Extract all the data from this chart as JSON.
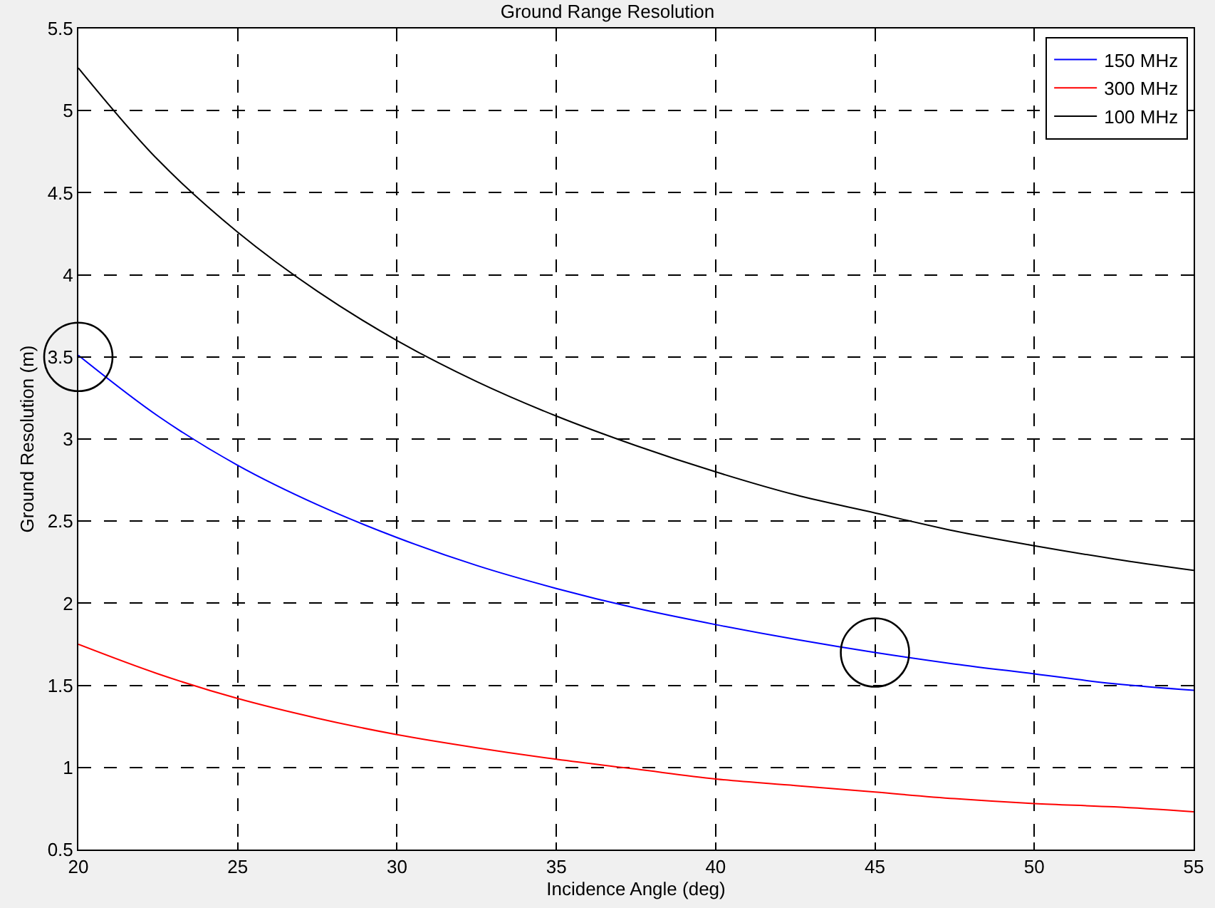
{
  "chart_data": {
    "type": "line",
    "title": "Ground Range Resolution",
    "xlabel": "Incidence Angle (deg)",
    "ylabel": "Ground Resolution (m)",
    "x": [
      20,
      22.5,
      25,
      27.5,
      30,
      32.5,
      35,
      37.5,
      40,
      42.5,
      45,
      47.5,
      50,
      52.5,
      55
    ],
    "series": [
      {
        "name": "150 MHz",
        "color": "#0000ff",
        "values": [
          3.51,
          3.14,
          2.84,
          2.6,
          2.4,
          2.23,
          2.09,
          1.97,
          1.87,
          1.78,
          1.7,
          1.63,
          1.57,
          1.51,
          1.47
        ]
      },
      {
        "name": "300 MHz",
        "color": "#ff0000",
        "values": [
          1.75,
          1.57,
          1.42,
          1.3,
          1.2,
          1.12,
          1.05,
          0.99,
          0.93,
          0.89,
          0.85,
          0.81,
          0.78,
          0.76,
          0.73
        ]
      },
      {
        "name": "100 MHz",
        "color": "#000000",
        "values": [
          5.26,
          4.7,
          4.26,
          3.9,
          3.6,
          3.35,
          3.14,
          2.96,
          2.8,
          2.66,
          2.55,
          2.44,
          2.35,
          2.27,
          2.2
        ]
      },
      {
        "type": "scatter",
        "marker": "circle",
        "color": "#000000",
        "x": [
          20,
          45
        ],
        "values": [
          3.5,
          1.7
        ]
      }
    ],
    "xlim": [
      20,
      55
    ],
    "xticks": [
      20,
      25,
      30,
      35,
      40,
      45,
      50,
      55
    ],
    "ylim": [
      0.5,
      5.5
    ],
    "yticks": [
      0.5,
      1,
      1.5,
      2,
      2.5,
      3,
      3.5,
      4,
      4.5,
      5,
      5.5
    ],
    "grid": true,
    "legend": "top right",
    "line_style": "solid",
    "marker": "none"
  }
}
